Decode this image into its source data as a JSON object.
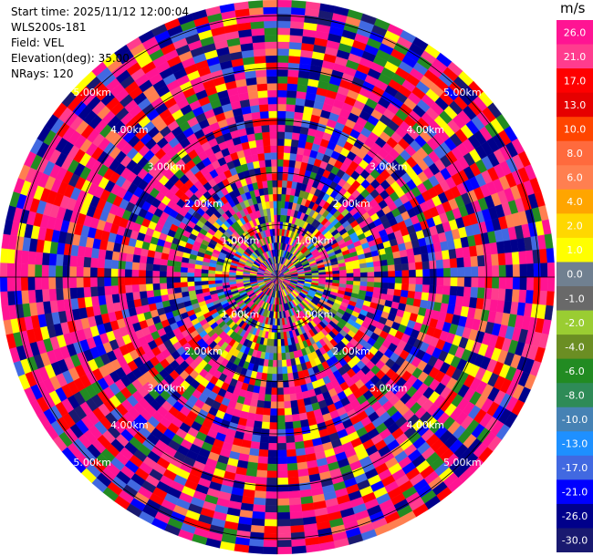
{
  "header": {
    "start_time": "Start time: 2025/11/12 12:00:04",
    "instrument": "WLS200s-181",
    "field": "Field: VEL",
    "elevation": "Elevation(deg): 35.00",
    "nrays": "NRays: 120"
  },
  "colorbar": {
    "unit": "m/s",
    "ticks": [
      "26.0",
      "21.0",
      "17.0",
      "13.0",
      "10.0",
      "8.0",
      "6.0",
      "4.0",
      "2.0",
      "1.0",
      "0.0",
      "-1.0",
      "-2.0",
      "-4.0",
      "-6.0",
      "-8.0",
      "-10.0",
      "-13.0",
      "-17.0",
      "-21.0",
      "-26.0",
      "-30.0"
    ],
    "colors": [
      "#ff1493",
      "#ff3c8e",
      "#ff0000",
      "#e60000",
      "#ff4500",
      "#ff6a3d",
      "#ff7f50",
      "#ffa500",
      "#ffd700",
      "#ffff00",
      "#708090",
      "#696969",
      "#9acd32",
      "#6b8e23",
      "#228b22",
      "#2e8b57",
      "#4682b4",
      "#1e90ff",
      "#4169e1",
      "#0000ff",
      "#00008b",
      "#191970"
    ]
  },
  "chart_data": {
    "type": "heatmap",
    "projection": "polar-ppi",
    "field": "VEL",
    "units": "m/s",
    "nrays": 120,
    "ngates": 40,
    "max_range_km": 5.3,
    "vmin": -30.0,
    "vmax": 26.0,
    "range_rings_km": [
      1,
      2,
      3,
      4,
      5
    ],
    "ring_labels": [
      "1.00km",
      "2.00km",
      "3.00km",
      "4.00km",
      "5.00km"
    ],
    "grid": true
  }
}
